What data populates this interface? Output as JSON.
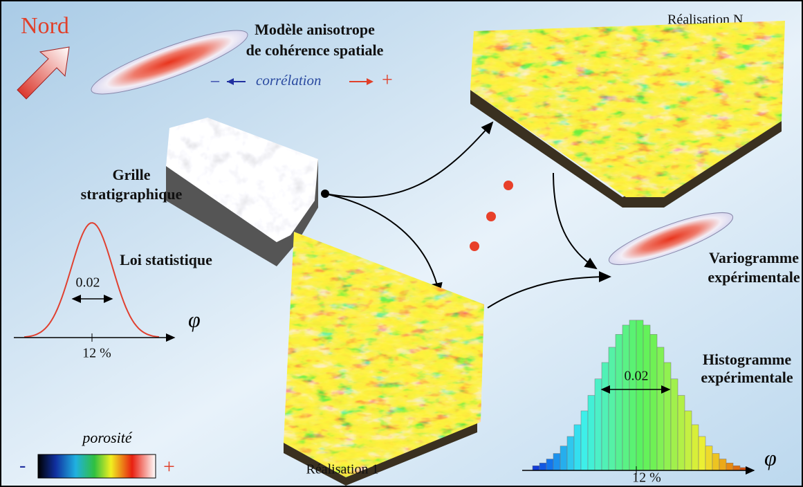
{
  "north_label": "Nord",
  "anisotropic_model": {
    "lines": [
      "Modèle anisotrope",
      "de cohérence spatiale"
    ],
    "correlation": {
      "minus": "–",
      "label": "corrélation",
      "plus": "+"
    }
  },
  "grid": {
    "lines": [
      "Grille",
      "stratigraphique"
    ]
  },
  "realizations": {
    "last": "Réalisation N",
    "first": "Réalisation 1"
  },
  "statistical_law": {
    "title": "Loi statistique",
    "width": "0.02",
    "mean": "12 %",
    "axis": "φ"
  },
  "variogram": {
    "lines": [
      "Variogramme",
      "expérimentale"
    ]
  },
  "histogram": {
    "lines": [
      "Histogramme",
      "expérimentale"
    ],
    "width": "0.02",
    "mean": "12 %",
    "axis": "φ"
  },
  "porosity_scale": {
    "title": "porosité",
    "min": "-",
    "max": "+"
  }
}
